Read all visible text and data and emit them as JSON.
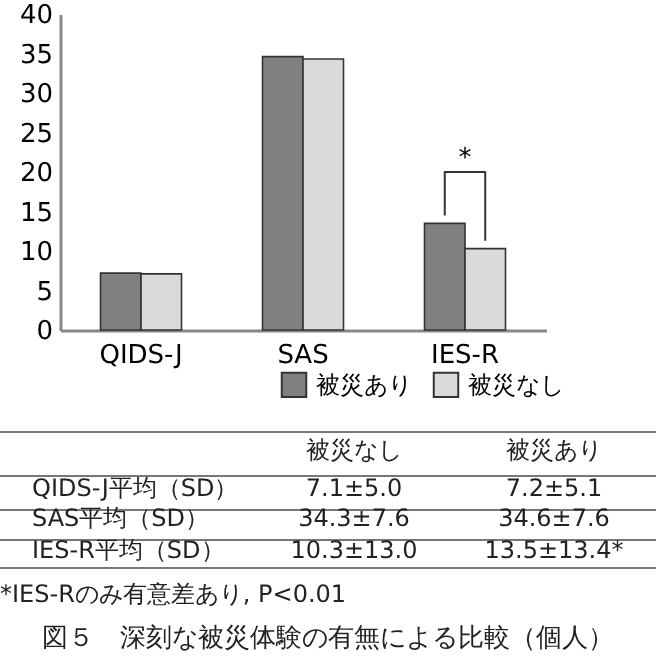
{
  "chart_data": {
    "type": "bar",
    "title": "図５　深刻な被災体験の有無による比較（個人）",
    "categories": [
      "QIDS-J",
      "SAS",
      "IES-R"
    ],
    "series": [
      {
        "name": "被災あり",
        "color": "#808080",
        "values": [
          7.2,
          34.6,
          13.5
        ]
      },
      {
        "name": "被災なし",
        "color": "#dadada",
        "values": [
          7.1,
          34.3,
          10.3
        ]
      }
    ],
    "ylim": [
      0,
      40
    ],
    "yticks": [
      0,
      5,
      10,
      15,
      20,
      25,
      30,
      35,
      40
    ],
    "grid": false,
    "legend": "bottom",
    "annotations": [
      "QIDS-J平均（SD）",
      "SAS平均（SD）",
      "IES-R平均（SD）",
      "7.1±5.0",
      "7.2±5.1",
      "34.3±7.6",
      "34.6±7.6",
      "10.3±13.0",
      "13.5±13.4*",
      "*",
      "*IES-Rのみ有意差あり, P<0.01"
    ]
  }
}
